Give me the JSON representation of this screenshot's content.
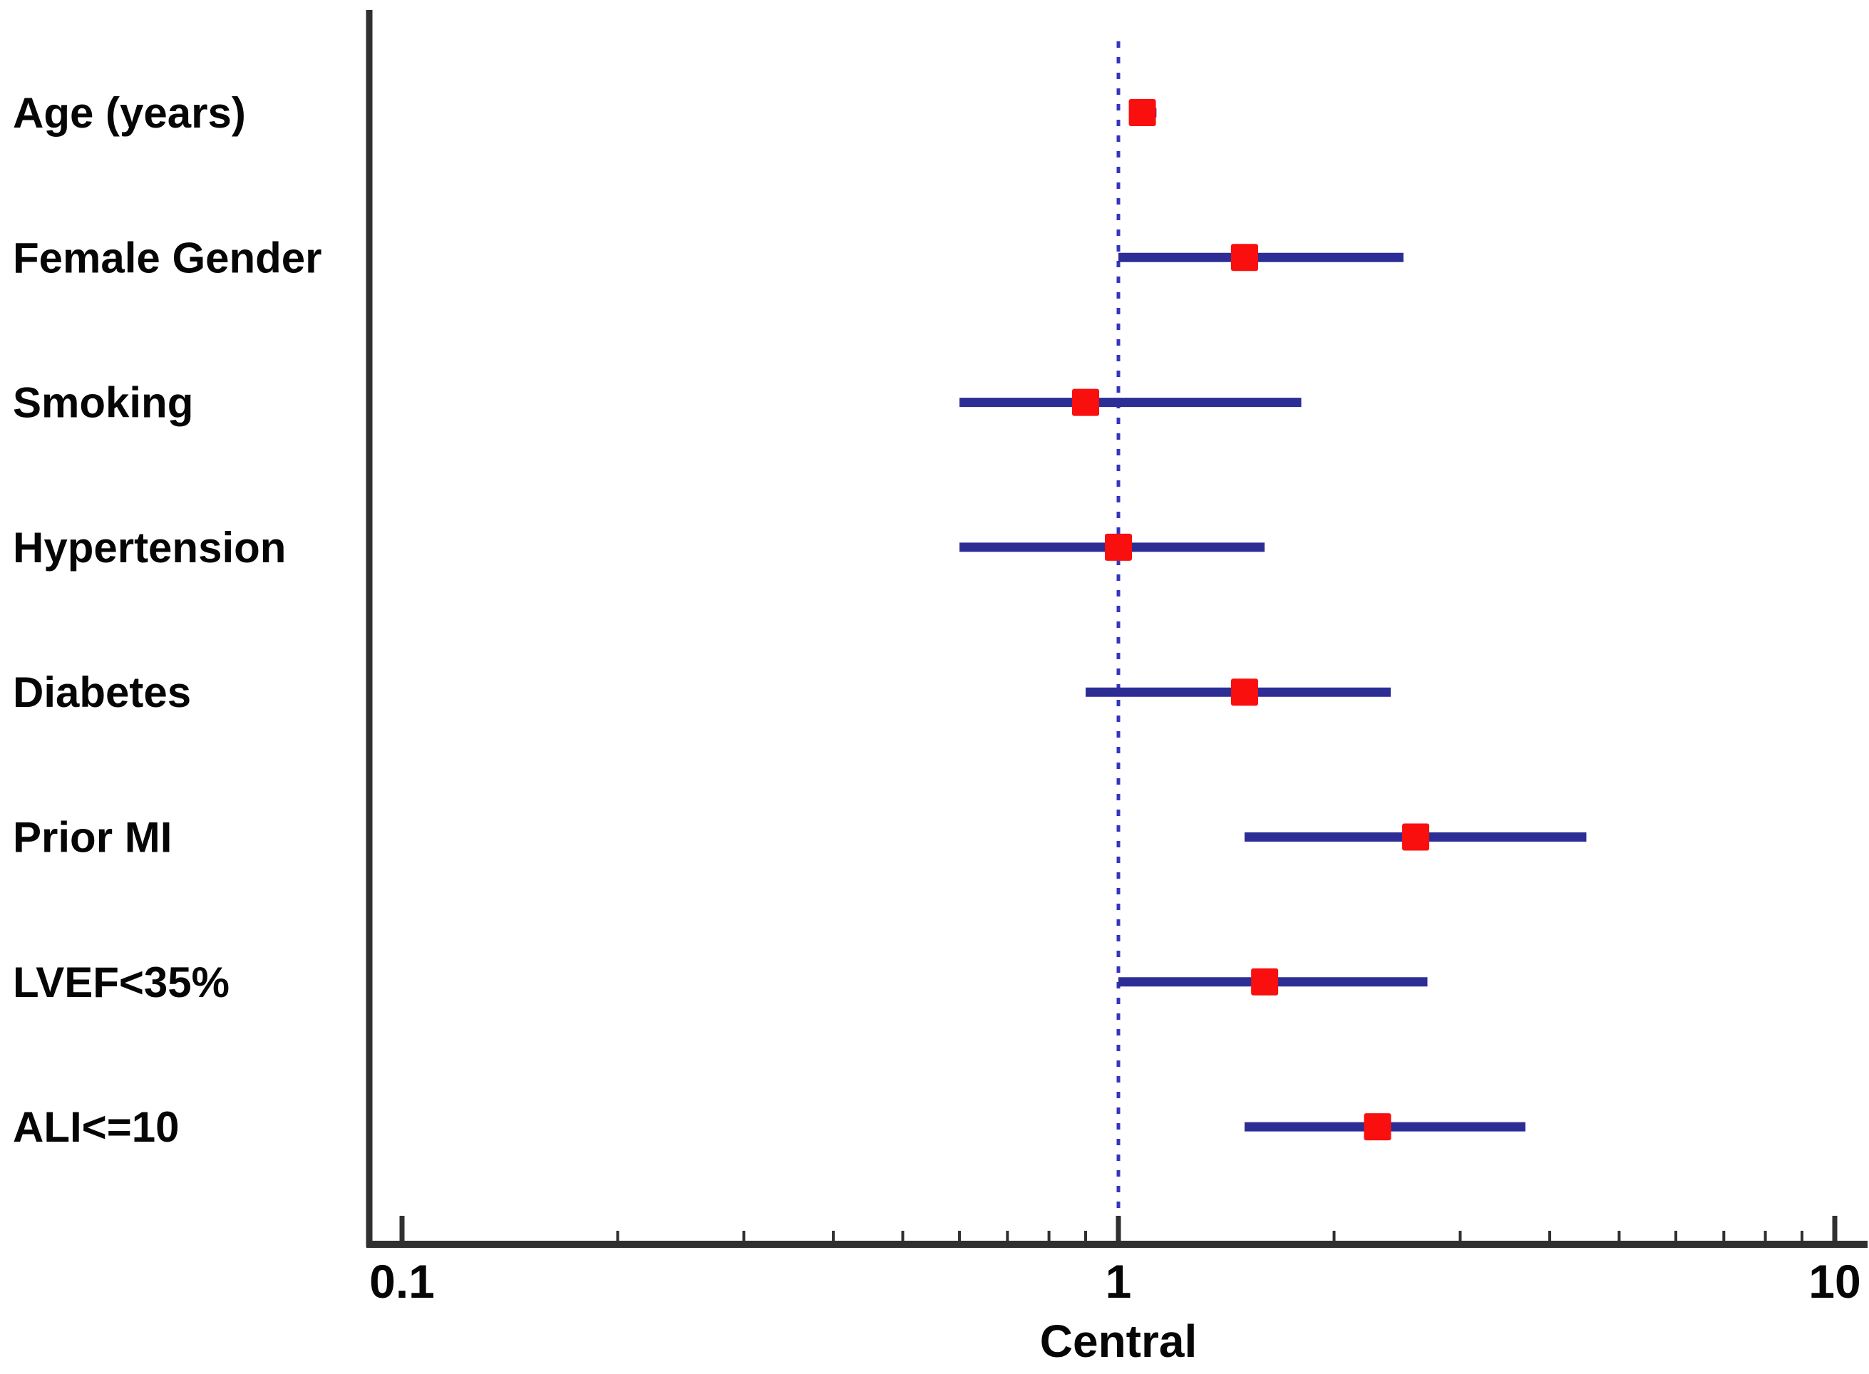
{
  "chart_data": {
    "type": "scatter",
    "variant": "forest-plot",
    "title": "",
    "xlabel": "Central",
    "ylabel": "",
    "xscale": "log",
    "xlim": [
      0.09,
      11.5
    ],
    "grid": false,
    "legend": "none",
    "reference_line_x": 1,
    "x_ticks_major": [
      {
        "value": 0.1,
        "label": "0.1"
      },
      {
        "value": 1,
        "label": "1"
      },
      {
        "value": 10,
        "label": "10"
      }
    ],
    "x_ticks_minor": [
      0.2,
      0.3,
      0.4,
      0.5,
      0.6,
      0.7,
      0.8,
      0.9,
      2,
      3,
      4,
      5,
      6,
      7,
      8,
      9
    ],
    "rows": [
      {
        "label": "Age (years)",
        "estimate": 1.08,
        "ci_low": 1.04,
        "ci_high": 1.13
      },
      {
        "label": "Female Gender",
        "estimate": 1.5,
        "ci_low": 1.0,
        "ci_high": 2.5
      },
      {
        "label": "Smoking",
        "estimate": 0.9,
        "ci_low": 0.6,
        "ci_high": 1.8
      },
      {
        "label": "Hypertension",
        "estimate": 1.0,
        "ci_low": 0.6,
        "ci_high": 1.6
      },
      {
        "label": "Diabetes",
        "estimate": 1.5,
        "ci_low": 0.9,
        "ci_high": 2.4
      },
      {
        "label": "Prior MI",
        "estimate": 2.6,
        "ci_low": 1.5,
        "ci_high": 4.5
      },
      {
        "label": "LVEF<35%",
        "estimate": 1.6,
        "ci_low": 1.0,
        "ci_high": 2.7
      },
      {
        "label": "ALI<=10",
        "estimate": 2.3,
        "ci_low": 1.5,
        "ci_high": 3.7
      }
    ],
    "colors": {
      "marker": "#fa0f0f",
      "ci_line": "#2d2d96",
      "reference_line": "#3434bd",
      "axis": "#303030",
      "text": "#060606"
    }
  }
}
